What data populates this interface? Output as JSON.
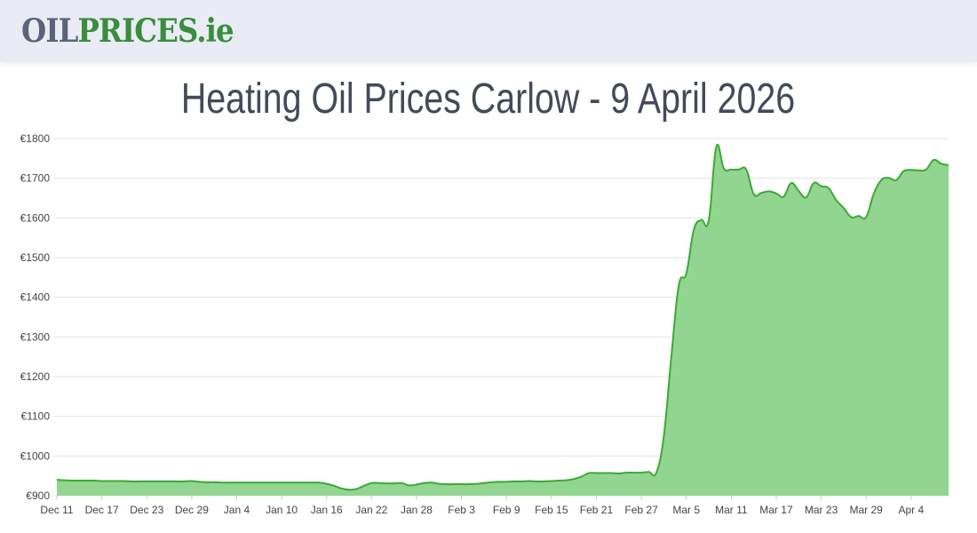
{
  "header": {
    "logo_part1": "OIL",
    "logo_part2": "PRICES.ie"
  },
  "page_title": "Heating Oil Prices Carlow - 9 April 2026",
  "colors": {
    "header_bg": "#e9ecf4",
    "line": "#3aaa35",
    "fill": "#92d590",
    "title": "#434a5a",
    "logo_gray": "#5a6478",
    "logo_green": "#3a8c3f"
  },
  "chart_data": {
    "type": "area",
    "title": "",
    "xlabel": "",
    "ylabel": "",
    "ylim": [
      900,
      1800
    ],
    "y_ticks": [
      "€900",
      "€1000",
      "€1100",
      "€1200",
      "€1300",
      "€1400",
      "€1500",
      "€1600",
      "€1700",
      "€1800"
    ],
    "y_tick_values": [
      900,
      1000,
      1100,
      1200,
      1300,
      1400,
      1500,
      1600,
      1700,
      1800
    ],
    "x_ticks": [
      "Dec 11",
      "Dec 17",
      "Dec 23",
      "Dec 29",
      "Jan 4",
      "Jan 10",
      "Jan 16",
      "Jan 22",
      "Jan 28",
      "Feb 3",
      "Feb 9",
      "Feb 15",
      "Feb 21",
      "Feb 27",
      "Mar 5",
      "Mar 11",
      "Mar 17",
      "Mar 23",
      "Mar 29",
      "Apr 4"
    ],
    "grid": true,
    "legend": "none",
    "x": [
      "Dec 11",
      "Dec 12",
      "Dec 13",
      "Dec 14",
      "Dec 15",
      "Dec 16",
      "Dec 17",
      "Dec 18",
      "Dec 19",
      "Dec 20",
      "Dec 21",
      "Dec 22",
      "Dec 23",
      "Dec 24",
      "Dec 25",
      "Dec 26",
      "Dec 27",
      "Dec 28",
      "Dec 29",
      "Dec 30",
      "Dec 31",
      "Jan 1",
      "Jan 2",
      "Jan 3",
      "Jan 4",
      "Jan 5",
      "Jan 6",
      "Jan 7",
      "Jan 8",
      "Jan 9",
      "Jan 10",
      "Jan 11",
      "Jan 12",
      "Jan 13",
      "Jan 14",
      "Jan 15",
      "Jan 16",
      "Jan 17",
      "Jan 18",
      "Jan 19",
      "Jan 20",
      "Jan 21",
      "Jan 22",
      "Jan 23",
      "Jan 24",
      "Jan 25",
      "Jan 26",
      "Jan 27",
      "Jan 28",
      "Jan 29",
      "Jan 30",
      "Jan 31",
      "Feb 1",
      "Feb 2",
      "Feb 3",
      "Feb 4",
      "Feb 5",
      "Feb 6",
      "Feb 7",
      "Feb 8",
      "Feb 9",
      "Feb 10",
      "Feb 11",
      "Feb 12",
      "Feb 13",
      "Feb 14",
      "Feb 15",
      "Feb 16",
      "Feb 17",
      "Feb 18",
      "Feb 19",
      "Feb 20",
      "Feb 21",
      "Feb 22",
      "Feb 23",
      "Feb 24",
      "Feb 25",
      "Feb 26",
      "Feb 27",
      "Feb 28",
      "Mar 1",
      "Mar 2",
      "Mar 3",
      "Mar 4",
      "Mar 5",
      "Mar 6",
      "Mar 7",
      "Mar 8",
      "Mar 9",
      "Mar 10",
      "Mar 11",
      "Mar 12",
      "Mar 13",
      "Mar 14",
      "Mar 15",
      "Mar 16",
      "Mar 17",
      "Mar 18",
      "Mar 19",
      "Mar 20",
      "Mar 21",
      "Mar 22",
      "Mar 23",
      "Mar 24",
      "Mar 25",
      "Mar 26",
      "Mar 27",
      "Mar 28",
      "Mar 29",
      "Mar 30",
      "Mar 31",
      "Apr 1",
      "Apr 2",
      "Apr 3",
      "Apr 4",
      "Apr 5",
      "Apr 6",
      "Apr 7",
      "Apr 8",
      "Apr 9"
    ],
    "values": [
      940,
      939,
      938,
      938,
      938,
      938,
      937,
      937,
      937,
      937,
      936,
      936,
      936,
      936,
      936,
      936,
      936,
      936,
      937,
      935,
      934,
      934,
      933,
      933,
      933,
      933,
      933,
      933,
      933,
      933,
      933,
      933,
      933,
      933,
      933,
      933,
      930,
      925,
      918,
      915,
      917,
      925,
      932,
      932,
      931,
      931,
      932,
      926,
      928,
      932,
      933,
      930,
      929,
      929,
      929,
      929,
      930,
      932,
      934,
      935,
      935,
      936,
      936,
      937,
      936,
      936,
      937,
      938,
      939,
      942,
      948,
      957,
      957,
      957,
      957,
      956,
      958,
      958,
      958,
      960,
      958,
      1050,
      1250,
      1430,
      1460,
      1570,
      1595,
      1594,
      1779,
      1725,
      1722,
      1722,
      1722,
      1660,
      1663,
      1667,
      1662,
      1654,
      1688,
      1668,
      1652,
      1688,
      1680,
      1675,
      1645,
      1625,
      1602,
      1605,
      1602,
      1660,
      1695,
      1701,
      1695,
      1718,
      1721,
      1720,
      1722,
      1746,
      1737,
      1733
    ]
  }
}
